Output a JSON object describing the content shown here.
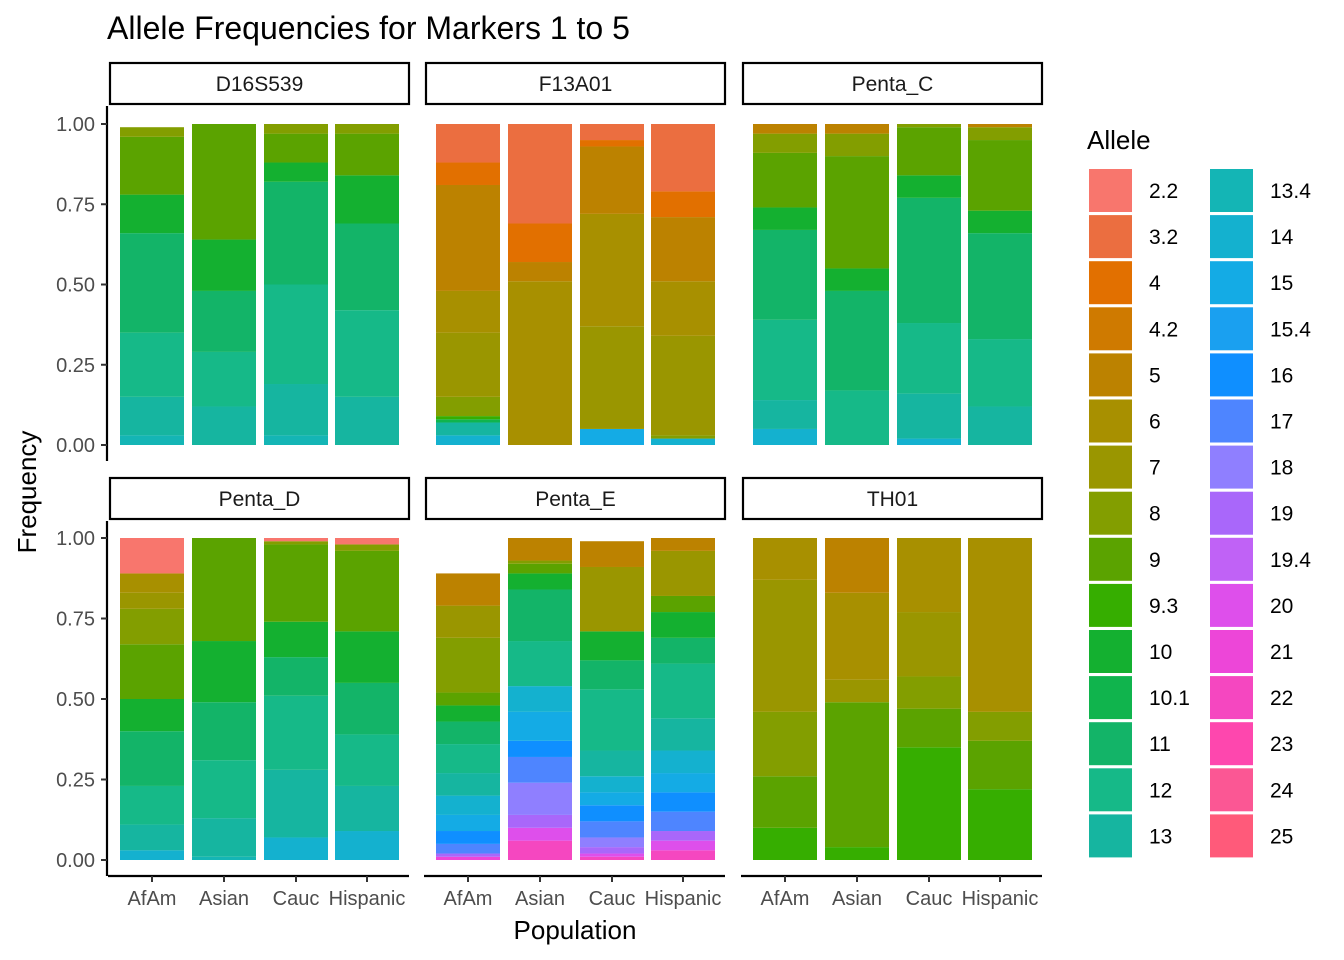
{
  "chart_data": {
    "type": "bar",
    "stacked": true,
    "title": "Allele Frequencies for Markers 1 to 5",
    "xlabel": "Population",
    "ylabel": "Frequency",
    "ylim": [
      0,
      1
    ],
    "y_ticks": [
      "0.00",
      "0.25",
      "0.50",
      "0.75",
      "1.00"
    ],
    "y_tick_values": [
      0,
      0.25,
      0.5,
      0.75,
      1
    ],
    "categories": [
      "AfAm",
      "Asian",
      "Cauc",
      "Hispanic"
    ],
    "legend": {
      "title": "Allele",
      "placement": "right",
      "alleles": [
        "2.2",
        "3.2",
        "4",
        "4.2",
        "5",
        "6",
        "7",
        "8",
        "9",
        "9.3",
        "10",
        "10.1",
        "11",
        "12",
        "13",
        "13.4",
        "14",
        "15",
        "15.4",
        "16",
        "17",
        "18",
        "19",
        "19.4",
        "20",
        "21",
        "22",
        "23",
        "24",
        "25"
      ],
      "colors": [
        "#F8766D",
        "#EB6E40",
        "#E27000",
        "#CF7A00",
        "#BC8200",
        "#A89000",
        "#9A9600",
        "#839E00",
        "#5BA300",
        "#36AE00",
        "#14B030",
        "#10B44D",
        "#13B468",
        "#16B988",
        "#16B5A0",
        "#14B5B5",
        "#14B1CF",
        "#14ABE5",
        "#1AA0F0",
        "#0F8FFF",
        "#4E85FF",
        "#8F7FFF",
        "#A967FA",
        "#C062F6",
        "#DE4FEB",
        "#ED46D8",
        "#F547C0",
        "#FE47AE",
        "#FB5794",
        "#FF5A7A"
      ]
    },
    "panels": [
      {
        "marker": "D16S539",
        "bars": [
          {
            "population": "AfAm",
            "segments": [
              [
                "13.4",
                0.03
              ],
              [
                "13",
                0.12
              ],
              [
                "12",
                0.2
              ],
              [
                "11",
                0.31
              ],
              [
                "10",
                0.12
              ],
              [
                "9",
                0.18
              ],
              [
                "8",
                0.03
              ]
            ]
          },
          {
            "population": "Asian",
            "segments": [
              [
                "13",
                0.12
              ],
              [
                "12",
                0.17
              ],
              [
                "11",
                0.19
              ],
              [
                "10",
                0.16
              ],
              [
                "9",
                0.36
              ]
            ]
          },
          {
            "population": "Cauc",
            "segments": [
              [
                "13.4",
                0.03
              ],
              [
                "13",
                0.16
              ],
              [
                "12",
                0.31
              ],
              [
                "11",
                0.32
              ],
              [
                "10",
                0.06
              ],
              [
                "9",
                0.09
              ],
              [
                "8",
                0.03
              ]
            ]
          },
          {
            "population": "Hispanic",
            "segments": [
              [
                "13",
                0.15
              ],
              [
                "12",
                0.27
              ],
              [
                "11",
                0.27
              ],
              [
                "10",
                0.15
              ],
              [
                "9",
                0.13
              ],
              [
                "8",
                0.03
              ]
            ]
          }
        ]
      },
      {
        "marker": "F13A01",
        "bars": [
          {
            "population": "AfAm",
            "segments": [
              [
                "14",
                0.03
              ],
              [
                "13",
                0.04
              ],
              [
                "10.1",
                0.01
              ],
              [
                "9.3",
                0.01
              ],
              [
                "8",
                0.06
              ],
              [
                "7",
                0.2
              ],
              [
                "6",
                0.13
              ],
              [
                "5",
                0.33
              ],
              [
                "4",
                0.07
              ],
              [
                "3.2",
                0.12
              ]
            ]
          },
          {
            "population": "Asian",
            "segments": [
              [
                "6",
                0.51
              ],
              [
                "5",
                0.06
              ],
              [
                "4",
                0.12
              ],
              [
                "3.2",
                0.31
              ]
            ]
          },
          {
            "population": "Cauc",
            "segments": [
              [
                "15",
                0.05
              ],
              [
                "7",
                0.32
              ],
              [
                "6",
                0.35
              ],
              [
                "5",
                0.21
              ],
              [
                "4",
                0.02
              ],
              [
                "3.2",
                0.05
              ]
            ]
          },
          {
            "population": "Hispanic",
            "segments": [
              [
                "14",
                0.02
              ],
              [
                "8",
                0.01
              ],
              [
                "7",
                0.31
              ],
              [
                "6",
                0.17
              ],
              [
                "5",
                0.2
              ],
              [
                "4",
                0.08
              ],
              [
                "3.2",
                0.21
              ]
            ]
          }
        ]
      },
      {
        "marker": "Penta_C",
        "bars": [
          {
            "population": "AfAm",
            "segments": [
              [
                "14",
                0.05
              ],
              [
                "13",
                0.09
              ],
              [
                "12",
                0.25
              ],
              [
                "11",
                0.28
              ],
              [
                "10",
                0.07
              ],
              [
                "9",
                0.17
              ],
              [
                "8",
                0.06
              ],
              [
                "5",
                0.03
              ]
            ]
          },
          {
            "population": "Asian",
            "segments": [
              [
                "12",
                0.17
              ],
              [
                "11",
                0.31
              ],
              [
                "10",
                0.07
              ],
              [
                "9",
                0.35
              ],
              [
                "8",
                0.07
              ],
              [
                "5",
                0.03
              ]
            ]
          },
          {
            "population": "Cauc",
            "segments": [
              [
                "14",
                0.02
              ],
              [
                "13",
                0.14
              ],
              [
                "12",
                0.22
              ],
              [
                "11",
                0.39
              ],
              [
                "10",
                0.07
              ],
              [
                "9",
                0.15
              ],
              [
                "8",
                0.01
              ]
            ]
          },
          {
            "population": "Hispanic",
            "segments": [
              [
                "13",
                0.12
              ],
              [
                "12",
                0.21
              ],
              [
                "11",
                0.33
              ],
              [
                "10",
                0.07
              ],
              [
                "9",
                0.22
              ],
              [
                "8",
                0.04
              ],
              [
                "5",
                0.01
              ]
            ]
          }
        ]
      },
      {
        "marker": "Penta_D",
        "bars": [
          {
            "population": "AfAm",
            "segments": [
              [
                "14",
                0.03
              ],
              [
                "13",
                0.08
              ],
              [
                "12",
                0.12
              ],
              [
                "11",
                0.17
              ],
              [
                "10",
                0.1
              ],
              [
                "9",
                0.17
              ],
              [
                "8",
                0.11
              ],
              [
                "7",
                0.05
              ],
              [
                "6",
                0.06
              ],
              [
                "2.2",
                0.11
              ]
            ]
          },
          {
            "population": "Asian",
            "segments": [
              [
                "13.4",
                0.01
              ],
              [
                "13",
                0.12
              ],
              [
                "12",
                0.18
              ],
              [
                "11",
                0.18
              ],
              [
                "10",
                0.19
              ],
              [
                "9",
                0.32
              ]
            ]
          },
          {
            "population": "Cauc",
            "segments": [
              [
                "14",
                0.07
              ],
              [
                "13",
                0.21
              ],
              [
                "12",
                0.23
              ],
              [
                "11",
                0.12
              ],
              [
                "10",
                0.11
              ],
              [
                "9",
                0.24
              ],
              [
                "8",
                0.01
              ],
              [
                "2.2",
                0.01
              ]
            ]
          },
          {
            "population": "Hispanic",
            "segments": [
              [
                "14",
                0.09
              ],
              [
                "13",
                0.14
              ],
              [
                "12",
                0.16
              ],
              [
                "11",
                0.16
              ],
              [
                "10",
                0.16
              ],
              [
                "9",
                0.25
              ],
              [
                "8",
                0.02
              ],
              [
                "2.2",
                0.02
              ]
            ]
          }
        ]
      },
      {
        "marker": "Penta_E",
        "bars": [
          {
            "population": "AfAm",
            "segments": [
              [
                "21",
                0.01
              ],
              [
                "19",
                0.01
              ],
              [
                "17",
                0.03
              ],
              [
                "16",
                0.04
              ],
              [
                "15",
                0.05
              ],
              [
                "14",
                0.06
              ],
              [
                "13",
                0.07
              ],
              [
                "12",
                0.09
              ],
              [
                "11",
                0.07
              ],
              [
                "10",
                0.05
              ],
              [
                "9",
                0.04
              ],
              [
                "8",
                0.17
              ],
              [
                "7",
                0.1
              ],
              [
                "5",
                0.1
              ]
            ]
          },
          {
            "population": "Asian",
            "segments": [
              [
                "22",
                0.06
              ],
              [
                "20",
                0.04
              ],
              [
                "19",
                0.04
              ],
              [
                "18",
                0.1
              ],
              [
                "17",
                0.08
              ],
              [
                "16",
                0.05
              ],
              [
                "15",
                0.09
              ],
              [
                "14",
                0.08
              ],
              [
                "12",
                0.14
              ],
              [
                "11",
                0.16
              ],
              [
                "10",
                0.05
              ],
              [
                "9",
                0.03
              ],
              [
                "8",
                0.01
              ],
              [
                "5",
                0.07
              ]
            ]
          },
          {
            "population": "Cauc",
            "segments": [
              [
                "22",
                0.01
              ],
              [
                "20",
                0.01
              ],
              [
                "19",
                0.02
              ],
              [
                "18",
                0.03
              ],
              [
                "17",
                0.05
              ],
              [
                "16",
                0.05
              ],
              [
                "15",
                0.04
              ],
              [
                "14",
                0.05
              ],
              [
                "13",
                0.08
              ],
              [
                "12",
                0.19
              ],
              [
                "11",
                0.09
              ],
              [
                "10",
                0.09
              ],
              [
                "7",
                0.2
              ],
              [
                "5",
                0.08
              ]
            ]
          },
          {
            "population": "Hispanic",
            "segments": [
              [
                "22",
                0.03
              ],
              [
                "20",
                0.03
              ],
              [
                "19",
                0.03
              ],
              [
                "17",
                0.06
              ],
              [
                "16",
                0.06
              ],
              [
                "15",
                0.06
              ],
              [
                "14",
                0.07
              ],
              [
                "13",
                0.1
              ],
              [
                "12",
                0.17
              ],
              [
                "11",
                0.08
              ],
              [
                "10",
                0.08
              ],
              [
                "9",
                0.05
              ],
              [
                "7",
                0.14
              ],
              [
                "5",
                0.04
              ]
            ]
          }
        ]
      },
      {
        "marker": "TH01",
        "bars": [
          {
            "population": "AfAm",
            "segments": [
              [
                "9.3",
                0.1
              ],
              [
                "9",
                0.16
              ],
              [
                "8",
                0.2
              ],
              [
                "7",
                0.41
              ],
              [
                "6",
                0.13
              ]
            ]
          },
          {
            "population": "Asian",
            "segments": [
              [
                "9.3",
                0.04
              ],
              [
                "9",
                0.45
              ],
              [
                "7",
                0.07
              ],
              [
                "6",
                0.27
              ],
              [
                "5",
                0.17
              ]
            ]
          },
          {
            "population": "Cauc",
            "segments": [
              [
                "9.3",
                0.35
              ],
              [
                "9",
                0.12
              ],
              [
                "8",
                0.1
              ],
              [
                "7",
                0.2
              ],
              [
                "6",
                0.23
              ]
            ]
          },
          {
            "population": "Hispanic",
            "segments": [
              [
                "9.3",
                0.22
              ],
              [
                "9",
                0.15
              ],
              [
                "8",
                0.09
              ],
              [
                "6",
                0.54
              ]
            ]
          }
        ]
      }
    ]
  }
}
